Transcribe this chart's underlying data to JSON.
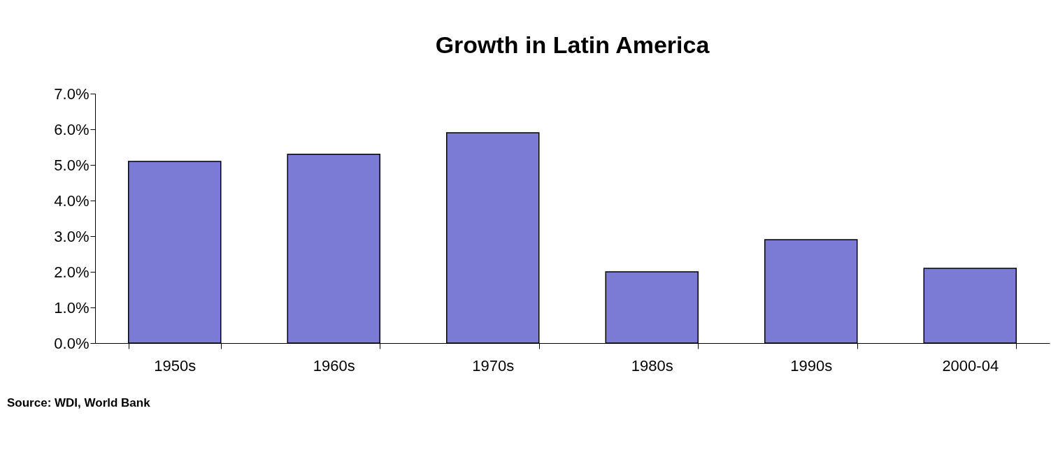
{
  "chart_data": {
    "type": "bar",
    "title": "Growth in Latin America",
    "categories": [
      "1950s",
      "1960s",
      "1970s",
      "1980s",
      "1990s",
      "2000-04"
    ],
    "values": [
      5.1,
      5.3,
      5.9,
      2.0,
      2.9,
      2.1
    ],
    "color": "#7b7bd6",
    "ylim": [
      0,
      7
    ],
    "yticks": [
      {
        "value": 0,
        "label": "0.0%"
      },
      {
        "value": 1,
        "label": "1.0%"
      },
      {
        "value": 2,
        "label": "2.0%"
      },
      {
        "value": 3,
        "label": "3.0%"
      },
      {
        "value": 4,
        "label": "4.0%"
      },
      {
        "value": 5,
        "label": "5.0%"
      },
      {
        "value": 6,
        "label": "6.0%"
      },
      {
        "value": 7,
        "label": "7.0%"
      }
    ],
    "grid": false,
    "annotations": [
      "Source: WDI, World Bank"
    ]
  }
}
